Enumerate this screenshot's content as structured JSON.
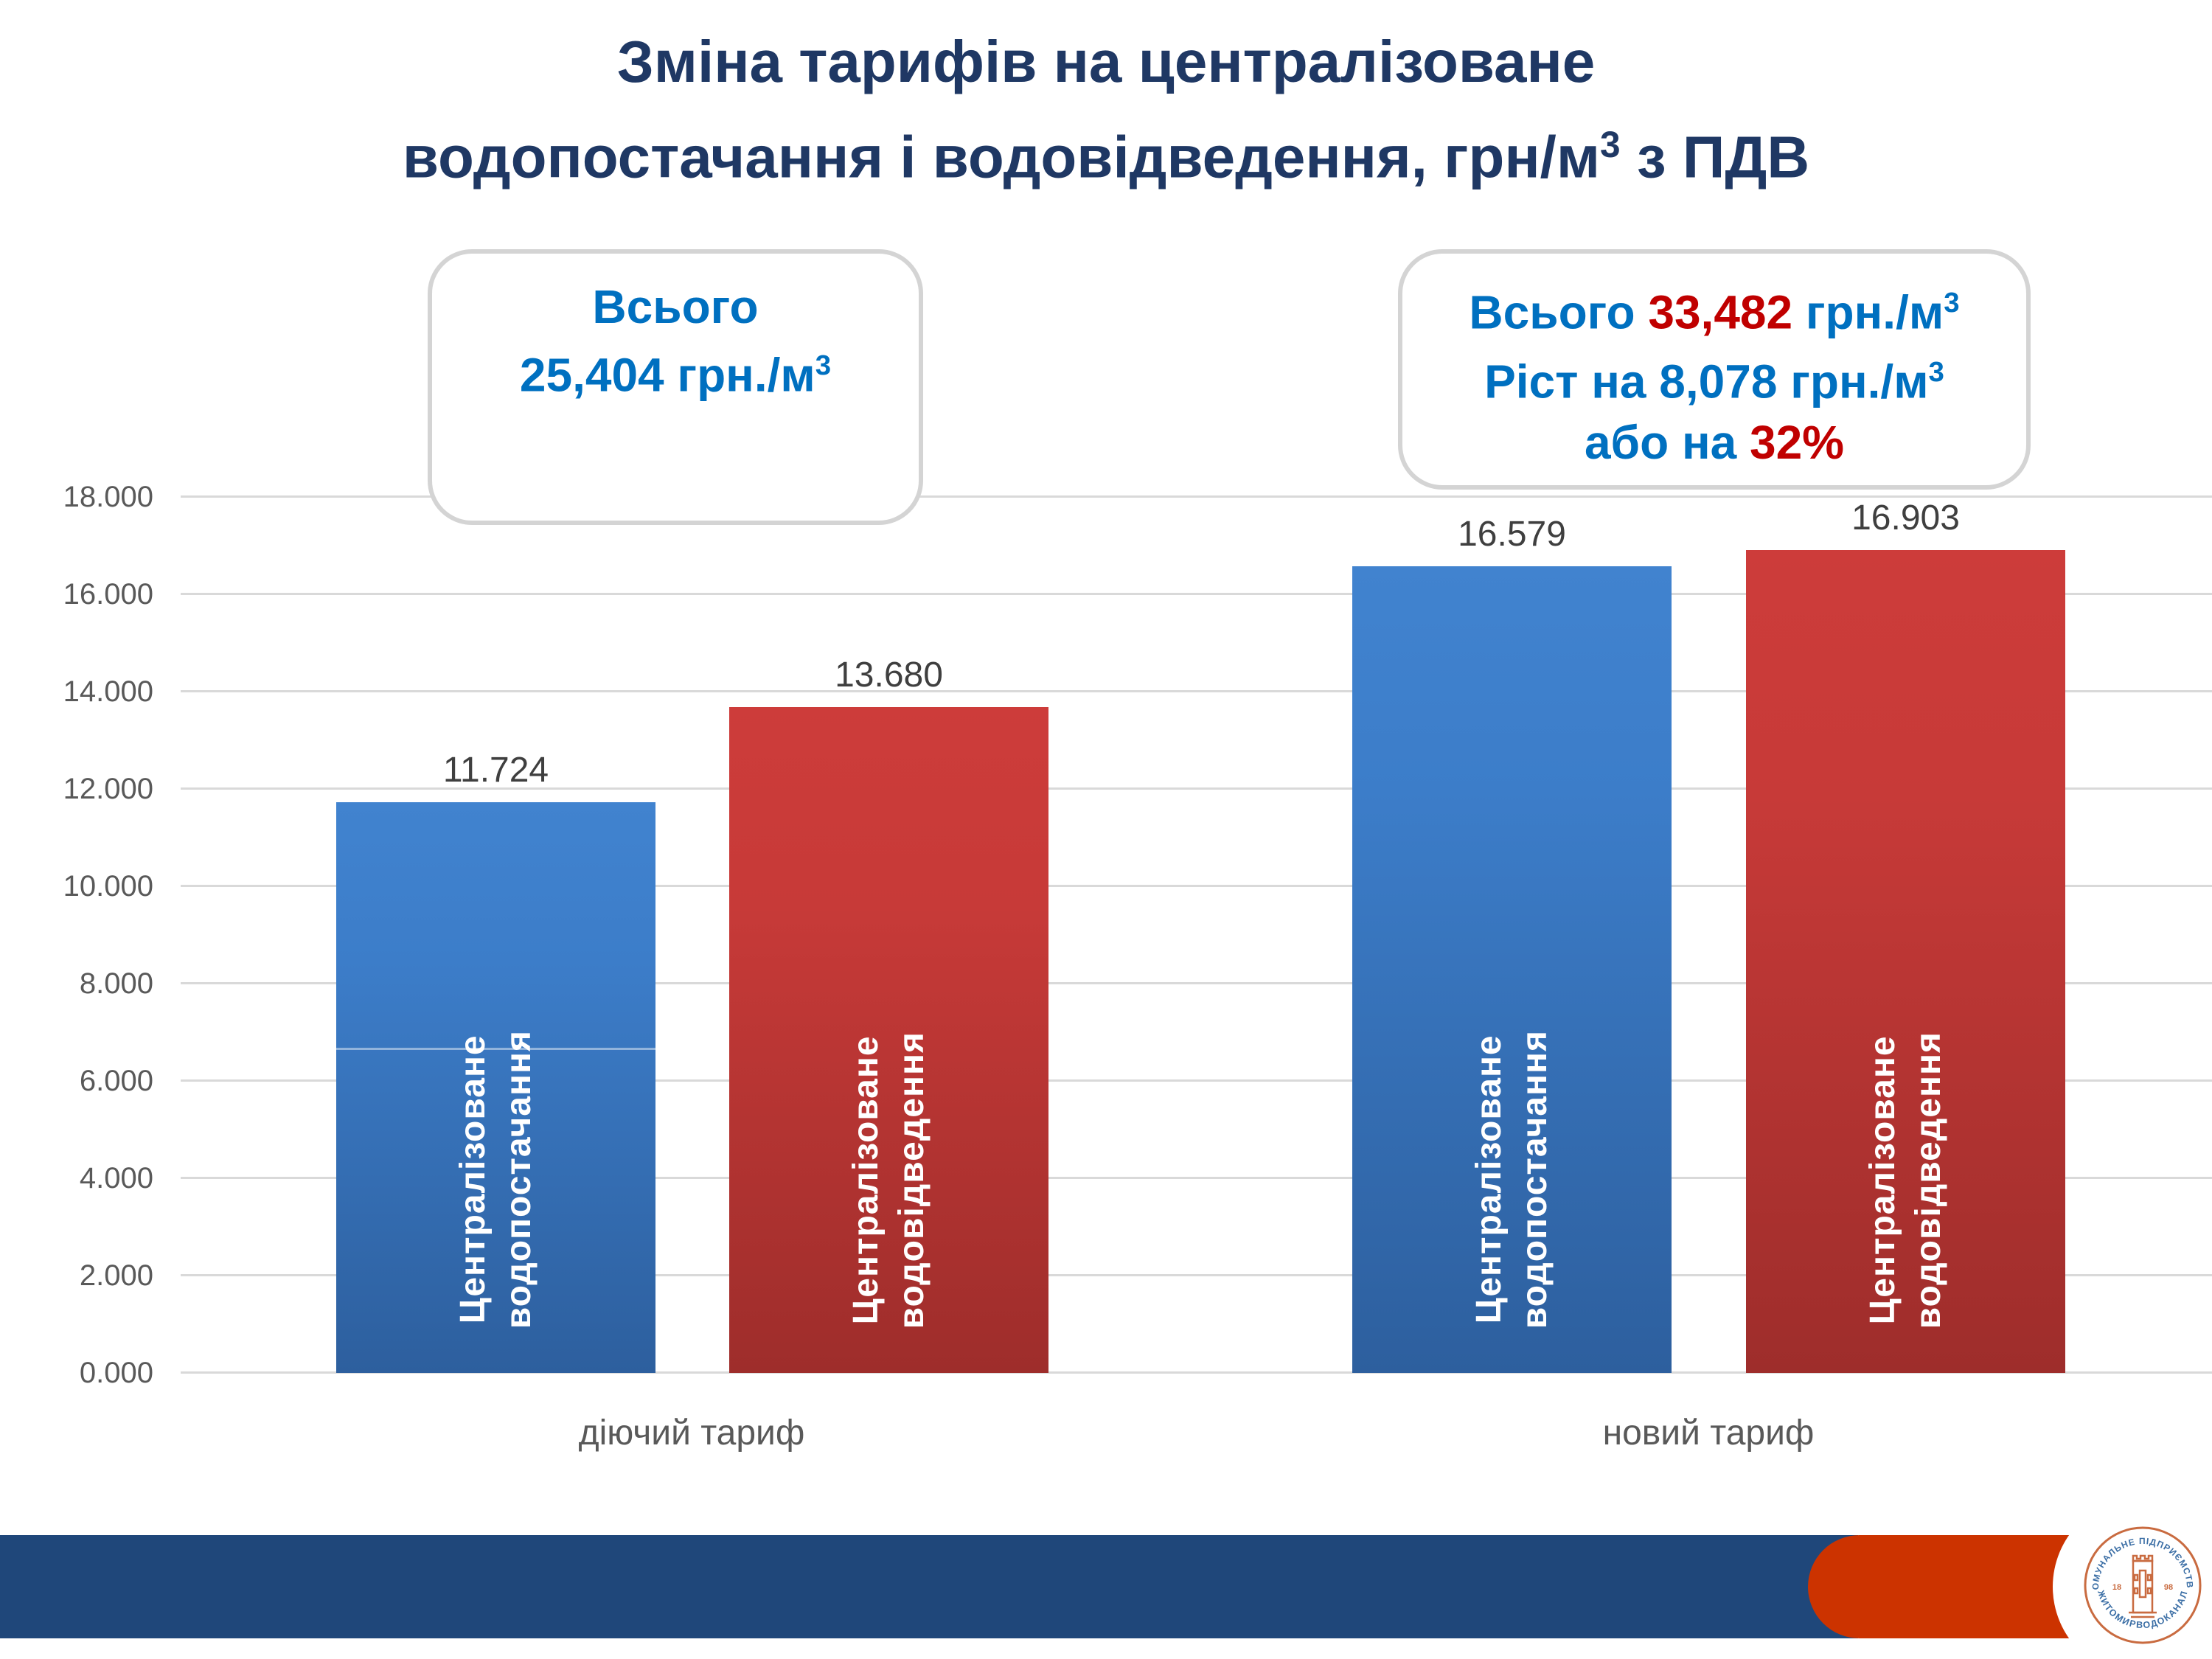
{
  "title": {
    "line1": "Зміна тарифів на централізоване",
    "line2_pre": "водопостачання і водовідведення, грн/м",
    "line2_sup": "3",
    "line2_post": " з ПДВ"
  },
  "callout_left": {
    "line1": "Всього",
    "line2": "25,404 грн./м",
    "line2_sup": "3"
  },
  "callout_right": {
    "l1_label": "Всього ",
    "l1_value": "33,482",
    "l1_unit": " грн./м",
    "l1_sup": "3",
    "l2": "Ріст на 8,078 грн./м",
    "l2_sup": "3",
    "l3_label": "або на ",
    "l3_value": "32%"
  },
  "chart_data": {
    "type": "bar",
    "title": "Зміна тарифів на централізоване водопостачання і водовідведення, грн/м3 з ПДВ",
    "categories": [
      "діючий тариф",
      "новий тариф"
    ],
    "series": [
      {
        "name": "Централізоване водопостачання",
        "name_lines": [
          "Централізоване",
          "водопостачання"
        ],
        "color": "#3C7DC9",
        "values": [
          11.724,
          16.579
        ]
      },
      {
        "name": "Централізоване водовідведення",
        "name_lines": [
          "Централізоване",
          "водовідведення"
        ],
        "color": "#CC3B39",
        "values": [
          13.68,
          16.903
        ]
      }
    ],
    "value_labels": [
      [
        "11.724",
        "16.579"
      ],
      [
        "13.680",
        "16.903"
      ]
    ],
    "ylim": [
      0,
      18
    ],
    "ytick_step": 2,
    "ytick_labels": [
      "18.000",
      "16.000",
      "14.000",
      "12.000",
      "10.000",
      "8.000",
      "6.000",
      "4.000",
      "2.000",
      "0.000"
    ],
    "grid": true,
    "legend_position": "none",
    "totals": {
      "current": "25,404 грн./м3",
      "new": "33,482 грн./м3",
      "growth": "8,078 грн./м3",
      "growth_pct": "32%"
    }
  },
  "footer": {
    "logo": {
      "top_text": "КОМУНАЛЬНЕ ПІДПРИЄМСТВО",
      "bottom_text": "ЖИТОМИРВОДОКАНАЛ",
      "year_left": "18",
      "year_right": "98"
    }
  },
  "colors": {
    "title_navy": "#1F3864",
    "callout_blue": "#0070C0",
    "callout_red": "#C00000",
    "bar_blue_top": "#3C7DC9",
    "bar_blue_bottom": "#2D5F9E",
    "bar_red_top": "#CD3C3A",
    "bar_red_bottom": "#9E2D2B",
    "gridline": "#D9D9D9",
    "axis_text": "#595959",
    "footer_blue": "#1F477A",
    "footer_orange": "#CC3300"
  }
}
